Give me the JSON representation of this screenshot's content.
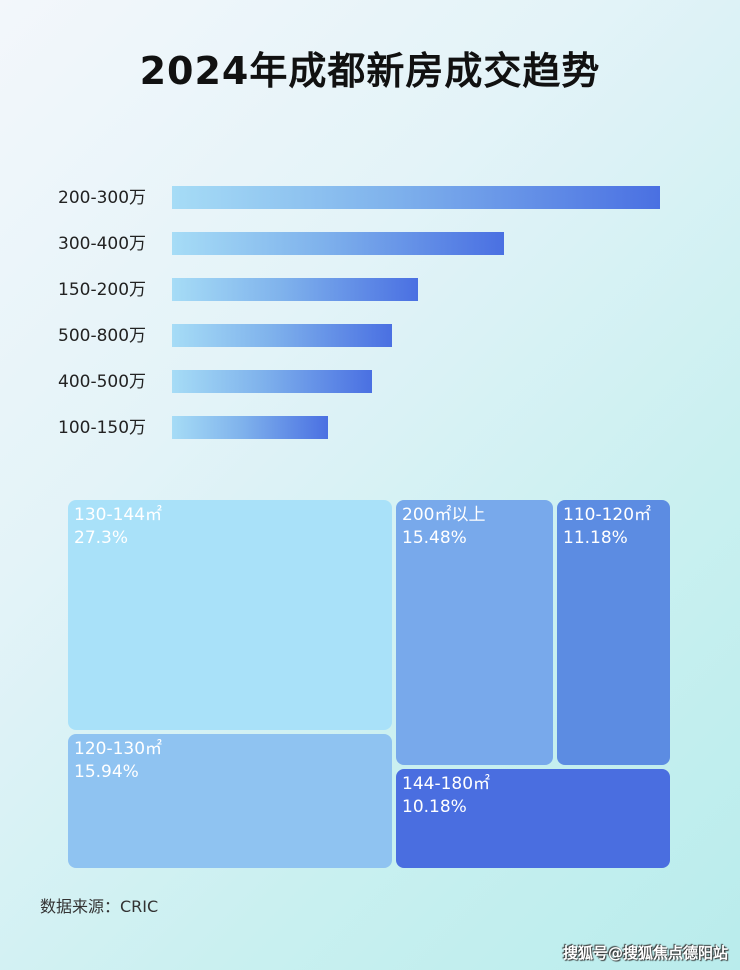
{
  "chart_data": [
    {
      "type": "bar",
      "orientation": "horizontal",
      "title": "2024年成都新房成交趋势",
      "categories": [
        "200-300万",
        "300-400万",
        "150-200万",
        "500-800万",
        "400-500万",
        "100-150万"
      ],
      "values": [
        100,
        68,
        50.4,
        45,
        41,
        32
      ],
      "value_scale": "relative (longest bar = 100); no axis printed",
      "grid": false,
      "bar_color_gradient": [
        "#a6dcf6",
        "#4a70e2"
      ]
    },
    {
      "type": "treemap",
      "cells": [
        {
          "label": "130-144㎡",
          "value": "27.3%",
          "color": "#a9e1f9"
        },
        {
          "label": "120-130㎡",
          "value": "15.94%",
          "color": "#8fc3f1"
        },
        {
          "label": "200㎡以上",
          "value": "15.48%",
          "color": "#78a9eb"
        },
        {
          "label": "110-120㎡",
          "value": "11.18%",
          "color": "#5c8ce2"
        },
        {
          "label": "144-180㎡",
          "value": "10.18%",
          "color": "#4a6ee0"
        }
      ]
    }
  ],
  "source": "数据来源：CRIC",
  "watermark": "搜狐号@搜狐焦点德阳站"
}
